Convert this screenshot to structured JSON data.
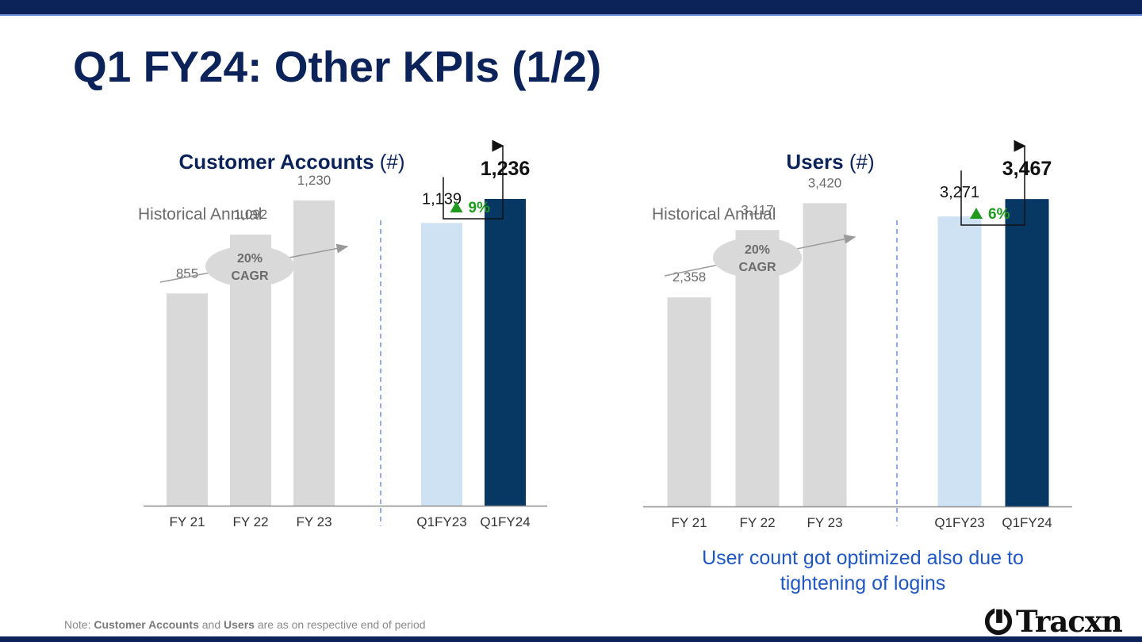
{
  "slide": {
    "title": "Q1 FY24: Other KPIs (1/2)",
    "note_prefix": "Note: ",
    "note_bold1": "Customer Accounts",
    "note_mid": " and ",
    "note_bold2": "Users",
    "note_suffix": " are as on respective end of period",
    "side_note": "User count got optimized also due to tightening of logins",
    "logo_text": "Tracxn"
  },
  "colors": {
    "navy": "#0b2359",
    "historical_bar": "#d9d9d9",
    "prev_quarter_bar": "#cfe2f3",
    "current_quarter_bar": "#073763",
    "growth_green": "#1f9a1f",
    "divider": "#6f93d8"
  },
  "chart_data": [
    {
      "type": "bar",
      "title": "Customer Accounts",
      "title_unit": "(#)",
      "section_label": "Historical Annual",
      "categories": [
        "FY 21",
        "FY 22",
        "FY 23",
        "Q1FY23",
        "Q1FY24"
      ],
      "values": [
        855,
        1092,
        1230,
        1139,
        1236
      ],
      "value_labels": [
        "855",
        "1,092",
        "1,230",
        "1,139",
        "1,236"
      ],
      "cagr_label": [
        "20%",
        "CAGR"
      ],
      "growth_label": "9%"
    },
    {
      "type": "bar",
      "title": "Users",
      "title_unit": "(#)",
      "section_label": "Historical Annual",
      "categories": [
        "FY 21",
        "FY 22",
        "FY 23",
        "Q1FY23",
        "Q1FY24"
      ],
      "values": [
        2358,
        3117,
        3420,
        3271,
        3467
      ],
      "value_labels": [
        "2,358",
        "3,117",
        "3,420",
        "3,271",
        "3,467"
      ],
      "cagr_label": [
        "20%",
        "CAGR"
      ],
      "growth_label": "6%"
    }
  ]
}
